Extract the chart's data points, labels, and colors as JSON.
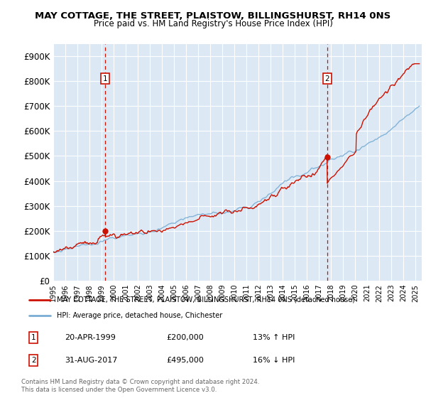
{
  "title": "MAY COTTAGE, THE STREET, PLAISTOW, BILLINGSHURST, RH14 0NS",
  "subtitle": "Price paid vs. HM Land Registry's House Price Index (HPI)",
  "ylim": [
    0,
    950000
  ],
  "xlim_start": 1995.0,
  "xlim_end": 2025.5,
  "transaction1": {
    "date_num": 1999.31,
    "value": 200000,
    "label": "1",
    "date_str": "20-APR-1999",
    "pct": "13% ↑ HPI"
  },
  "transaction2": {
    "date_num": 2017.66,
    "value": 495000,
    "label": "2",
    "date_str": "31-AUG-2017",
    "pct": "16% ↓ HPI"
  },
  "legend_line1": "MAY COTTAGE, THE STREET, PLAISTOW, BILLINGSHURST, RH14 0NS (detached house)",
  "legend_line2": "HPI: Average price, detached house, Chichester",
  "footnote": "Contains HM Land Registry data © Crown copyright and database right 2024.\nThis data is licensed under the Open Government Licence v3.0.",
  "hpi_color": "#7aadd4",
  "price_color": "#cc1100",
  "dashed_color": "#cc1100",
  "bg_color": "#dce9f5",
  "grid_color": "#ffffff",
  "box_color": "#cc1100"
}
